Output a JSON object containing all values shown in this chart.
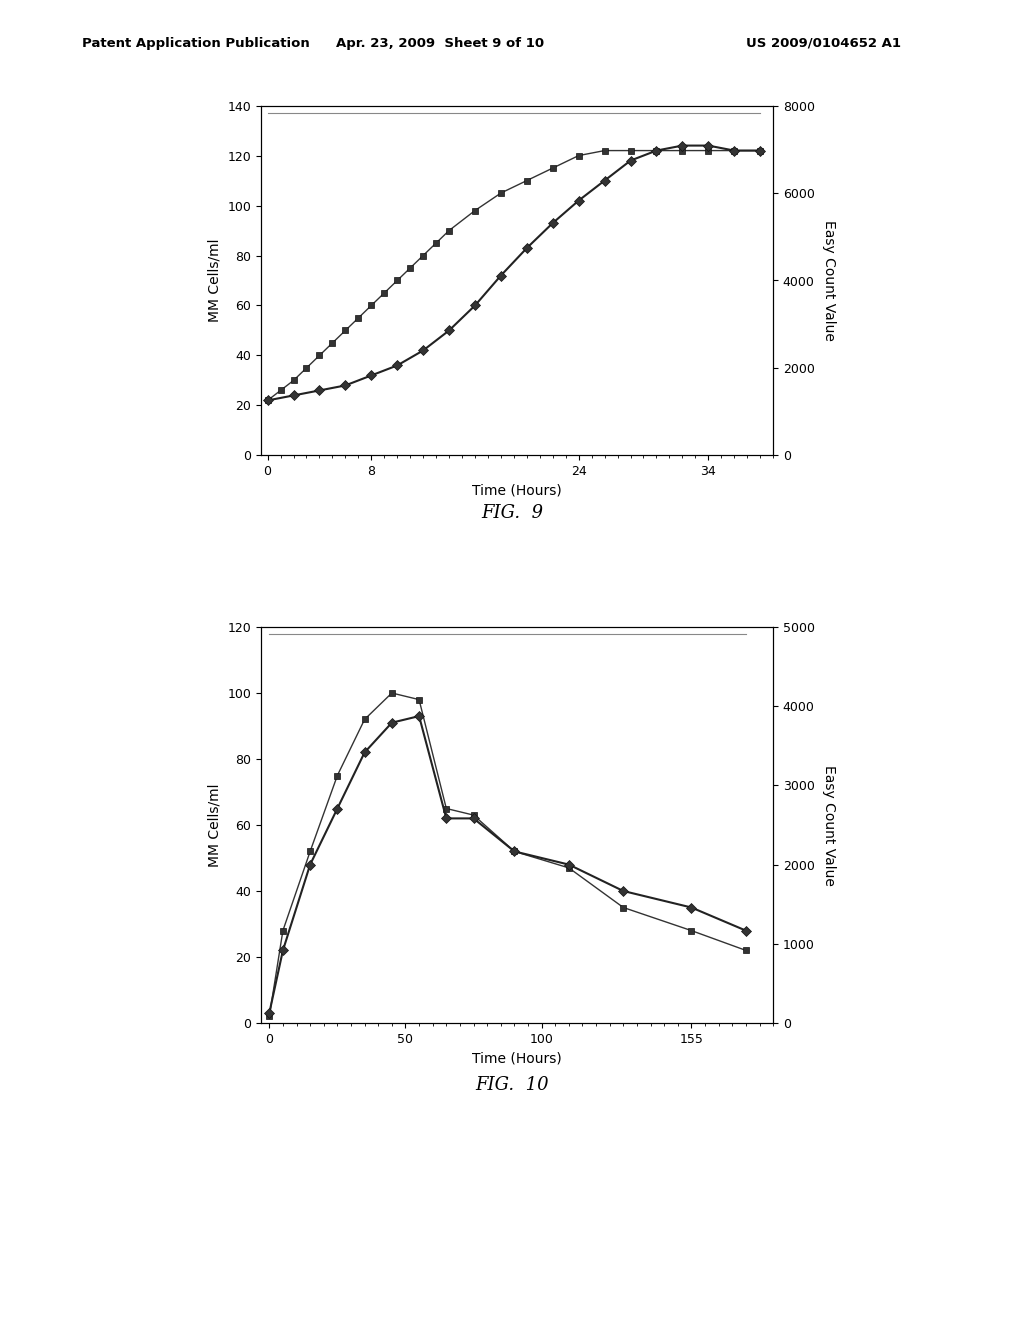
{
  "fig9": {
    "title": "FIG.  9",
    "xlabel": "Time (Hours)",
    "ylabel_left": "MM Cells/ml",
    "ylabel_right": "Easy Count Value",
    "xlim": [
      -0.5,
      39
    ],
    "ylim_left": [
      0,
      140
    ],
    "ylim_right": [
      0,
      8000
    ],
    "xticks": [
      0,
      8,
      24,
      34
    ],
    "yticks_left": [
      0,
      20,
      40,
      60,
      80,
      100,
      120,
      140
    ],
    "yticks_right": [
      0,
      2000,
      4000,
      6000,
      8000
    ],
    "series_squares_x": [
      0,
      1,
      2,
      3,
      4,
      5,
      6,
      7,
      8,
      9,
      10,
      11,
      12,
      13,
      14,
      16,
      18,
      20,
      22,
      24,
      26,
      28,
      30,
      32,
      34,
      36,
      38
    ],
    "series_squares_y": [
      22,
      26,
      30,
      35,
      40,
      45,
      50,
      55,
      60,
      65,
      70,
      75,
      80,
      85,
      90,
      98,
      105,
      110,
      115,
      120,
      122,
      122,
      122,
      122,
      122,
      122,
      122
    ],
    "series_diamonds_x": [
      0,
      2,
      4,
      6,
      8,
      10,
      12,
      14,
      16,
      18,
      20,
      22,
      24,
      26,
      28,
      30,
      32,
      34,
      36,
      38
    ],
    "series_diamonds_y": [
      22,
      24,
      26,
      28,
      32,
      36,
      42,
      50,
      60,
      72,
      83,
      93,
      102,
      110,
      118,
      122,
      124,
      124,
      122,
      122
    ],
    "flat_line_y": 137,
    "flat_line_x_start": 0,
    "flat_line_x_end": 38
  },
  "fig10": {
    "title": "FIG.  10",
    "xlabel": "Time (Hours)",
    "ylabel_left": "MM Cells/ml",
    "ylabel_right": "Easy Count Value",
    "xlim": [
      -3,
      185
    ],
    "ylim_left": [
      0,
      120
    ],
    "ylim_right": [
      0,
      5000
    ],
    "xticks": [
      0,
      50,
      100,
      155
    ],
    "yticks_left": [
      0,
      20,
      40,
      60,
      80,
      100,
      120
    ],
    "yticks_right": [
      0,
      1000,
      2000,
      3000,
      4000,
      5000
    ],
    "series_squares_x": [
      0,
      5,
      15,
      25,
      35,
      45,
      55,
      65,
      75,
      90,
      110,
      130,
      155,
      175
    ],
    "series_squares_y": [
      2,
      28,
      52,
      75,
      92,
      100,
      98,
      65,
      63,
      52,
      47,
      35,
      28,
      22
    ],
    "series_diamonds_x": [
      0,
      5,
      15,
      25,
      35,
      45,
      55,
      65,
      75,
      90,
      110,
      130,
      155,
      175
    ],
    "series_diamonds_y": [
      3,
      22,
      48,
      65,
      82,
      91,
      93,
      62,
      62,
      52,
      48,
      40,
      35,
      28
    ],
    "flat_line_y": 118,
    "flat_line_x_start": 0,
    "flat_line_x_end": 175
  },
  "header_left": "Patent Application Publication",
  "header_mid": "Apr. 23, 2009  Sheet 9 of 10",
  "header_right": "US 2009/0104652 A1",
  "bg_color": "#ffffff"
}
